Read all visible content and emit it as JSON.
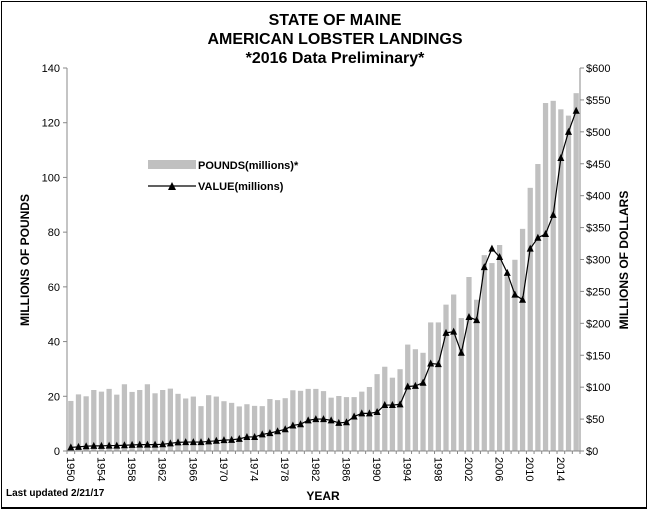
{
  "chart_data": {
    "type": "bar+line",
    "title": [
      "STATE OF MAINE",
      "AMERICAN LOBSTER LANDINGS",
      "*2016 Data Preliminary*"
    ],
    "xlabel": "YEAR",
    "ylabel": "MILLIONS OF POUNDS",
    "y2label": "MILLIONS OF DOLLARS",
    "ylim": [
      0,
      140
    ],
    "y2lim": [
      0,
      600
    ],
    "yticks": [
      "0",
      "20",
      "40",
      "60",
      "80",
      "100",
      "120",
      "140"
    ],
    "y2ticks": [
      "$0",
      "$50",
      "$100",
      "$150",
      "$200",
      "$250",
      "$300",
      "$350",
      "$400",
      "$450",
      "$500",
      "$550",
      "$600"
    ],
    "xtick_labels": [
      "1950",
      "1954",
      "1958",
      "1962",
      "1966",
      "1970",
      "1974",
      "1978",
      "1982",
      "1986",
      "1990",
      "1994",
      "1998",
      "2002",
      "2006",
      "2010",
      "2014"
    ],
    "x": [
      1950,
      1951,
      1952,
      1953,
      1954,
      1955,
      1956,
      1957,
      1958,
      1959,
      1960,
      1961,
      1962,
      1963,
      1964,
      1965,
      1966,
      1967,
      1968,
      1969,
      1970,
      1971,
      1972,
      1973,
      1974,
      1975,
      1976,
      1977,
      1978,
      1979,
      1980,
      1981,
      1982,
      1983,
      1984,
      1985,
      1986,
      1987,
      1988,
      1989,
      1990,
      1991,
      1992,
      1993,
      1994,
      1995,
      1996,
      1997,
      1998,
      1999,
      2000,
      2001,
      2002,
      2003,
      2004,
      2005,
      2006,
      2007,
      2008,
      2009,
      2010,
      2011,
      2012,
      2013,
      2014,
      2015,
      2016
    ],
    "series": [
      {
        "name": "POUNDS(millions)*",
        "type": "bar",
        "axis": "left",
        "color": "#c0c0c0",
        "values": [
          18.3,
          20.7,
          20.0,
          22.3,
          21.7,
          22.7,
          20.6,
          24.4,
          21.6,
          22.3,
          24.4,
          21.1,
          22.3,
          22.8,
          20.9,
          19.2,
          19.9,
          16.4,
          20.4,
          19.9,
          18.2,
          17.6,
          16.3,
          17.1,
          16.5,
          16.4,
          19.0,
          18.6,
          19.3,
          22.2,
          22.0,
          22.7,
          22.7,
          21.9,
          19.5,
          20.1,
          19.7,
          19.7,
          21.7,
          23.4,
          28.1,
          30.8,
          26.8,
          29.9,
          38.9,
          37.2,
          35.9,
          47.0,
          47.0,
          53.5,
          57.2,
          48.6,
          63.6,
          55.3,
          71.6,
          68.7,
          75.3,
          63.9,
          69.9,
          81.2,
          96.2,
          104.9,
          127.2,
          128.0,
          124.9,
          122.6,
          130.8
        ]
      },
      {
        "name": "VALUE(millions)",
        "type": "line",
        "axis": "right",
        "color": "#000000",
        "values": [
          5.6,
          6.5,
          7.5,
          8,
          8,
          8.5,
          8.5,
          9,
          9.5,
          10,
          10,
          10,
          10.5,
          12,
          13.5,
          14,
          14,
          14,
          15,
          16,
          17,
          17.5,
          19,
          22,
          22,
          26,
          28,
          31,
          34,
          40,
          42,
          48,
          50,
          50,
          48,
          44,
          45,
          54,
          59,
          59,
          61,
          72,
          72,
          73,
          101,
          102,
          107,
          137,
          136,
          185,
          187,
          154,
          210,
          205,
          288,
          317,
          304,
          279,
          245,
          237,
          317,
          334,
          340,
          370,
          459,
          500,
          533
        ]
      }
    ],
    "legend": "upper-left inside",
    "grid": false,
    "footnote": "Last updated 2/21/17"
  }
}
